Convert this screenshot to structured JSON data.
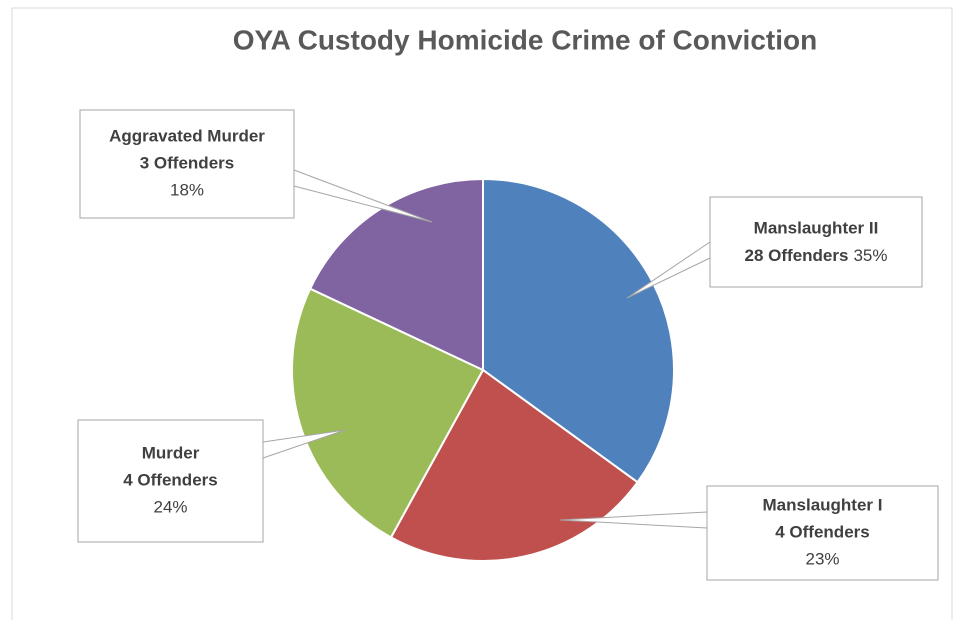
{
  "chart_data": {
    "type": "pie",
    "title": "OYA Custody Homicide Crime of Conviction",
    "categories": [
      "Manslaughter II",
      "Manslaughter I",
      "Murder",
      "Aggravated Murder"
    ],
    "values": [
      35,
      23,
      24,
      18
    ],
    "value_labels": [
      "35%",
      "23%",
      "24%",
      "18%"
    ],
    "offender_labels": [
      "28 Offenders",
      "4 Offenders",
      "4 Offenders",
      "3 Offenders"
    ],
    "colors": [
      "#4f81bd",
      "#c0504d",
      "#9bbb59",
      "#8064a2"
    ]
  }
}
